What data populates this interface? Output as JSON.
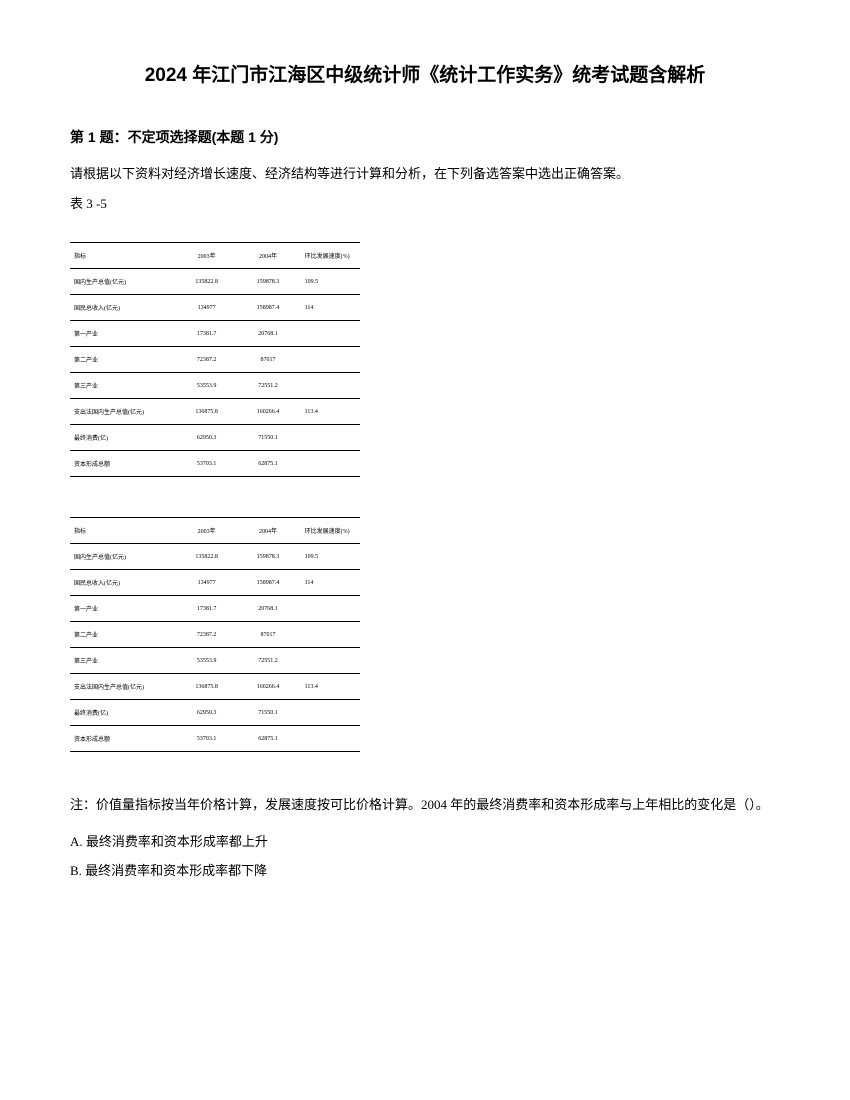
{
  "title": "2024 年江门市江海区中级统计师《统计工作实务》统考试题含解析",
  "question": {
    "header": "第 1 题：不定项选择题(本题 1 分)",
    "prompt": "请根据以下资料对经济增长速度、经济结构等进行计算和分析，在下列备选答案中选出正确答案。",
    "table_label": "表 3 -5"
  },
  "table": {
    "headers": [
      "指标",
      "2003年",
      "2004年",
      "环比发展速度(%)"
    ],
    "rows": [
      [
        "国内生产总值(亿元)",
        "135822.8",
        "159878.3",
        "109.5"
      ],
      [
        "国民总收入(亿元)",
        "134977",
        "158987.4",
        "114"
      ],
      [
        "第一产业",
        "17381.7",
        "20768.1",
        ""
      ],
      [
        "第二产业",
        "72387.2",
        "87017",
        ""
      ],
      [
        "第三产业",
        "53553.9",
        "72551.2",
        ""
      ],
      [
        "支出法国内生产总值(亿元)",
        "136875.8",
        "160266.4",
        "113.4"
      ],
      [
        "最终消费(亿)",
        "62950.3",
        "71550.1",
        ""
      ],
      [
        "资本形成总额",
        "53703.1",
        "62875.1",
        ""
      ]
    ]
  },
  "note": "注：价值量指标按当年价格计算，发展速度按可比价格计算。2004 年的最终消费率和资本形成率与上年相比的变化是（）。",
  "options": {
    "A": "A. 最终消费率和资本形成率都上升",
    "B": "B. 最终消费率和资本形成率都下降"
  }
}
